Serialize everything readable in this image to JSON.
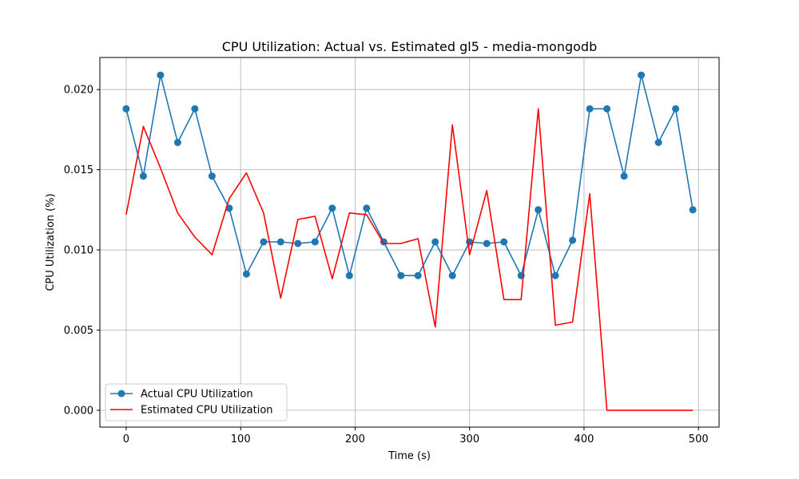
{
  "chart_data": {
    "type": "line",
    "title": "CPU Utilization: Actual vs. Estimated gl5 - media-mongodb",
    "xlabel": "Time (s)",
    "ylabel": "CPU Utilization (%)",
    "xlim": [
      -23,
      518
    ],
    "ylim": [
      -0.00105,
      0.022
    ],
    "xticks": [
      0,
      100,
      200,
      300,
      400,
      500
    ],
    "xtick_labels": [
      "0",
      "100",
      "200",
      "300",
      "400",
      "500"
    ],
    "yticks": [
      0.0,
      0.005,
      0.01,
      0.015,
      0.02
    ],
    "ytick_labels": [
      "0.000",
      "0.005",
      "0.010",
      "0.015",
      "0.020"
    ],
    "grid": true,
    "legend_position": "bottom-left",
    "series": [
      {
        "name": "Actual CPU Utilization",
        "color": "#1f77b4",
        "marker": "circle",
        "x": [
          0,
          15,
          30,
          45,
          60,
          75,
          90,
          105,
          120,
          135,
          150,
          165,
          180,
          195,
          210,
          225,
          240,
          255,
          270,
          285,
          300,
          315,
          330,
          345,
          360,
          375,
          390,
          405,
          420,
          435,
          450,
          465,
          480,
          495
        ],
        "y": [
          0.0188,
          0.0146,
          0.0209,
          0.0167,
          0.0188,
          0.0146,
          0.0126,
          0.0085,
          0.0105,
          0.0105,
          0.0104,
          0.0105,
          0.0126,
          0.0084,
          0.0126,
          0.0105,
          0.0084,
          0.0084,
          0.0105,
          0.0084,
          0.0105,
          0.0104,
          0.0105,
          0.0084,
          0.0125,
          0.0084,
          0.0106,
          0.0188,
          0.0188,
          0.0146,
          0.0209,
          0.0167,
          0.0188,
          0.0125
        ]
      },
      {
        "name": "Estimated CPU Utilization",
        "color": "#ff0000",
        "marker": "none",
        "x": [
          0,
          15,
          30,
          45,
          60,
          75,
          90,
          105,
          120,
          135,
          150,
          165,
          180,
          195,
          210,
          225,
          240,
          255,
          270,
          285,
          300,
          315,
          330,
          345,
          360,
          375,
          390,
          405,
          420,
          435,
          450,
          465,
          480,
          495
        ],
        "y": [
          0.0122,
          0.0177,
          0.0151,
          0.0123,
          0.0108,
          0.0097,
          0.0132,
          0.0148,
          0.0123,
          0.007,
          0.0119,
          0.0121,
          0.0082,
          0.0123,
          0.0122,
          0.0104,
          0.0104,
          0.0107,
          0.0052,
          0.0178,
          0.0097,
          0.0137,
          0.0069,
          0.0069,
          0.0188,
          0.0053,
          0.0055,
          0.0135,
          0.0,
          0.0,
          0.0,
          0.0,
          0.0,
          0.0
        ]
      }
    ]
  }
}
